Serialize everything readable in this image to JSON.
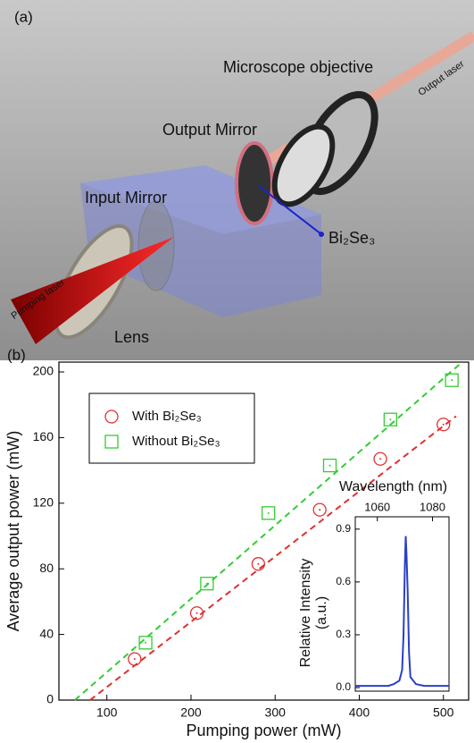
{
  "diagram": {
    "panel_label": "(a)",
    "labels": {
      "objective": "Microscope objective",
      "output_laser": "Output laser",
      "output_mirror": "Output Mirror",
      "input_mirror": "Input Mirror",
      "material": "Bi₂Se₃",
      "pumping_laser": "Pumping laser",
      "lens": "Lens"
    }
  },
  "chart_data": [
    {
      "type": "scatter",
      "panel_label": "(b)",
      "xlabel": "Pumping power (mW)",
      "ylabel": "Average output power (mW)",
      "xlim": [
        43,
        530
      ],
      "ylim": [
        0,
        206
      ],
      "xticks": [
        100,
        200,
        300,
        400,
        500
      ],
      "yticks": [
        0,
        40,
        80,
        120,
        160,
        200
      ],
      "series": [
        {
          "name": "With Bi₂Se₃",
          "color": "#e03030",
          "marker": "circle",
          "x": [
            133,
            207,
            280,
            353,
            425,
            500
          ],
          "values": [
            25,
            53,
            83,
            116,
            147,
            168
          ]
        },
        {
          "name": "Without Bi₂Se₃",
          "color": "#33cc33",
          "marker": "square",
          "x": [
            146,
            219,
            292,
            365,
            437,
            510
          ],
          "values": [
            35,
            71,
            114,
            143,
            171,
            195
          ]
        }
      ],
      "fits": [
        {
          "color": "#e03030",
          "x": [
            80,
            515
          ],
          "values": [
            0,
            173
          ]
        },
        {
          "color": "#33cc33",
          "x": [
            62,
            520
          ],
          "values": [
            0,
            205
          ]
        }
      ]
    },
    {
      "type": "line",
      "xlabel": "Wavelength (nm)",
      "ylabel": [
        "Relative Intensity",
        "(a.u.)"
      ],
      "xlim": [
        1052,
        1086
      ],
      "ylim": [
        -0.02,
        0.97
      ],
      "xticks": [
        1060,
        1080
      ],
      "yticks": [
        {
          "value": 0,
          "label": "0.0"
        },
        0.3,
        0.6,
        0.9
      ],
      "color": "#2a3fc8",
      "x": [
        1052,
        1055,
        1058,
        1061,
        1064,
        1066,
        1068,
        1069,
        1069.5,
        1070,
        1070.3,
        1070.6,
        1071,
        1071.5,
        1072,
        1074,
        1077,
        1080,
        1083,
        1086
      ],
      "values": [
        0.01,
        0.01,
        0.01,
        0.01,
        0.01,
        0.02,
        0.04,
        0.1,
        0.3,
        0.7,
        0.86,
        0.75,
        0.55,
        0.2,
        0.06,
        0.02,
        0.01,
        0.01,
        0.01,
        0.01
      ]
    }
  ]
}
